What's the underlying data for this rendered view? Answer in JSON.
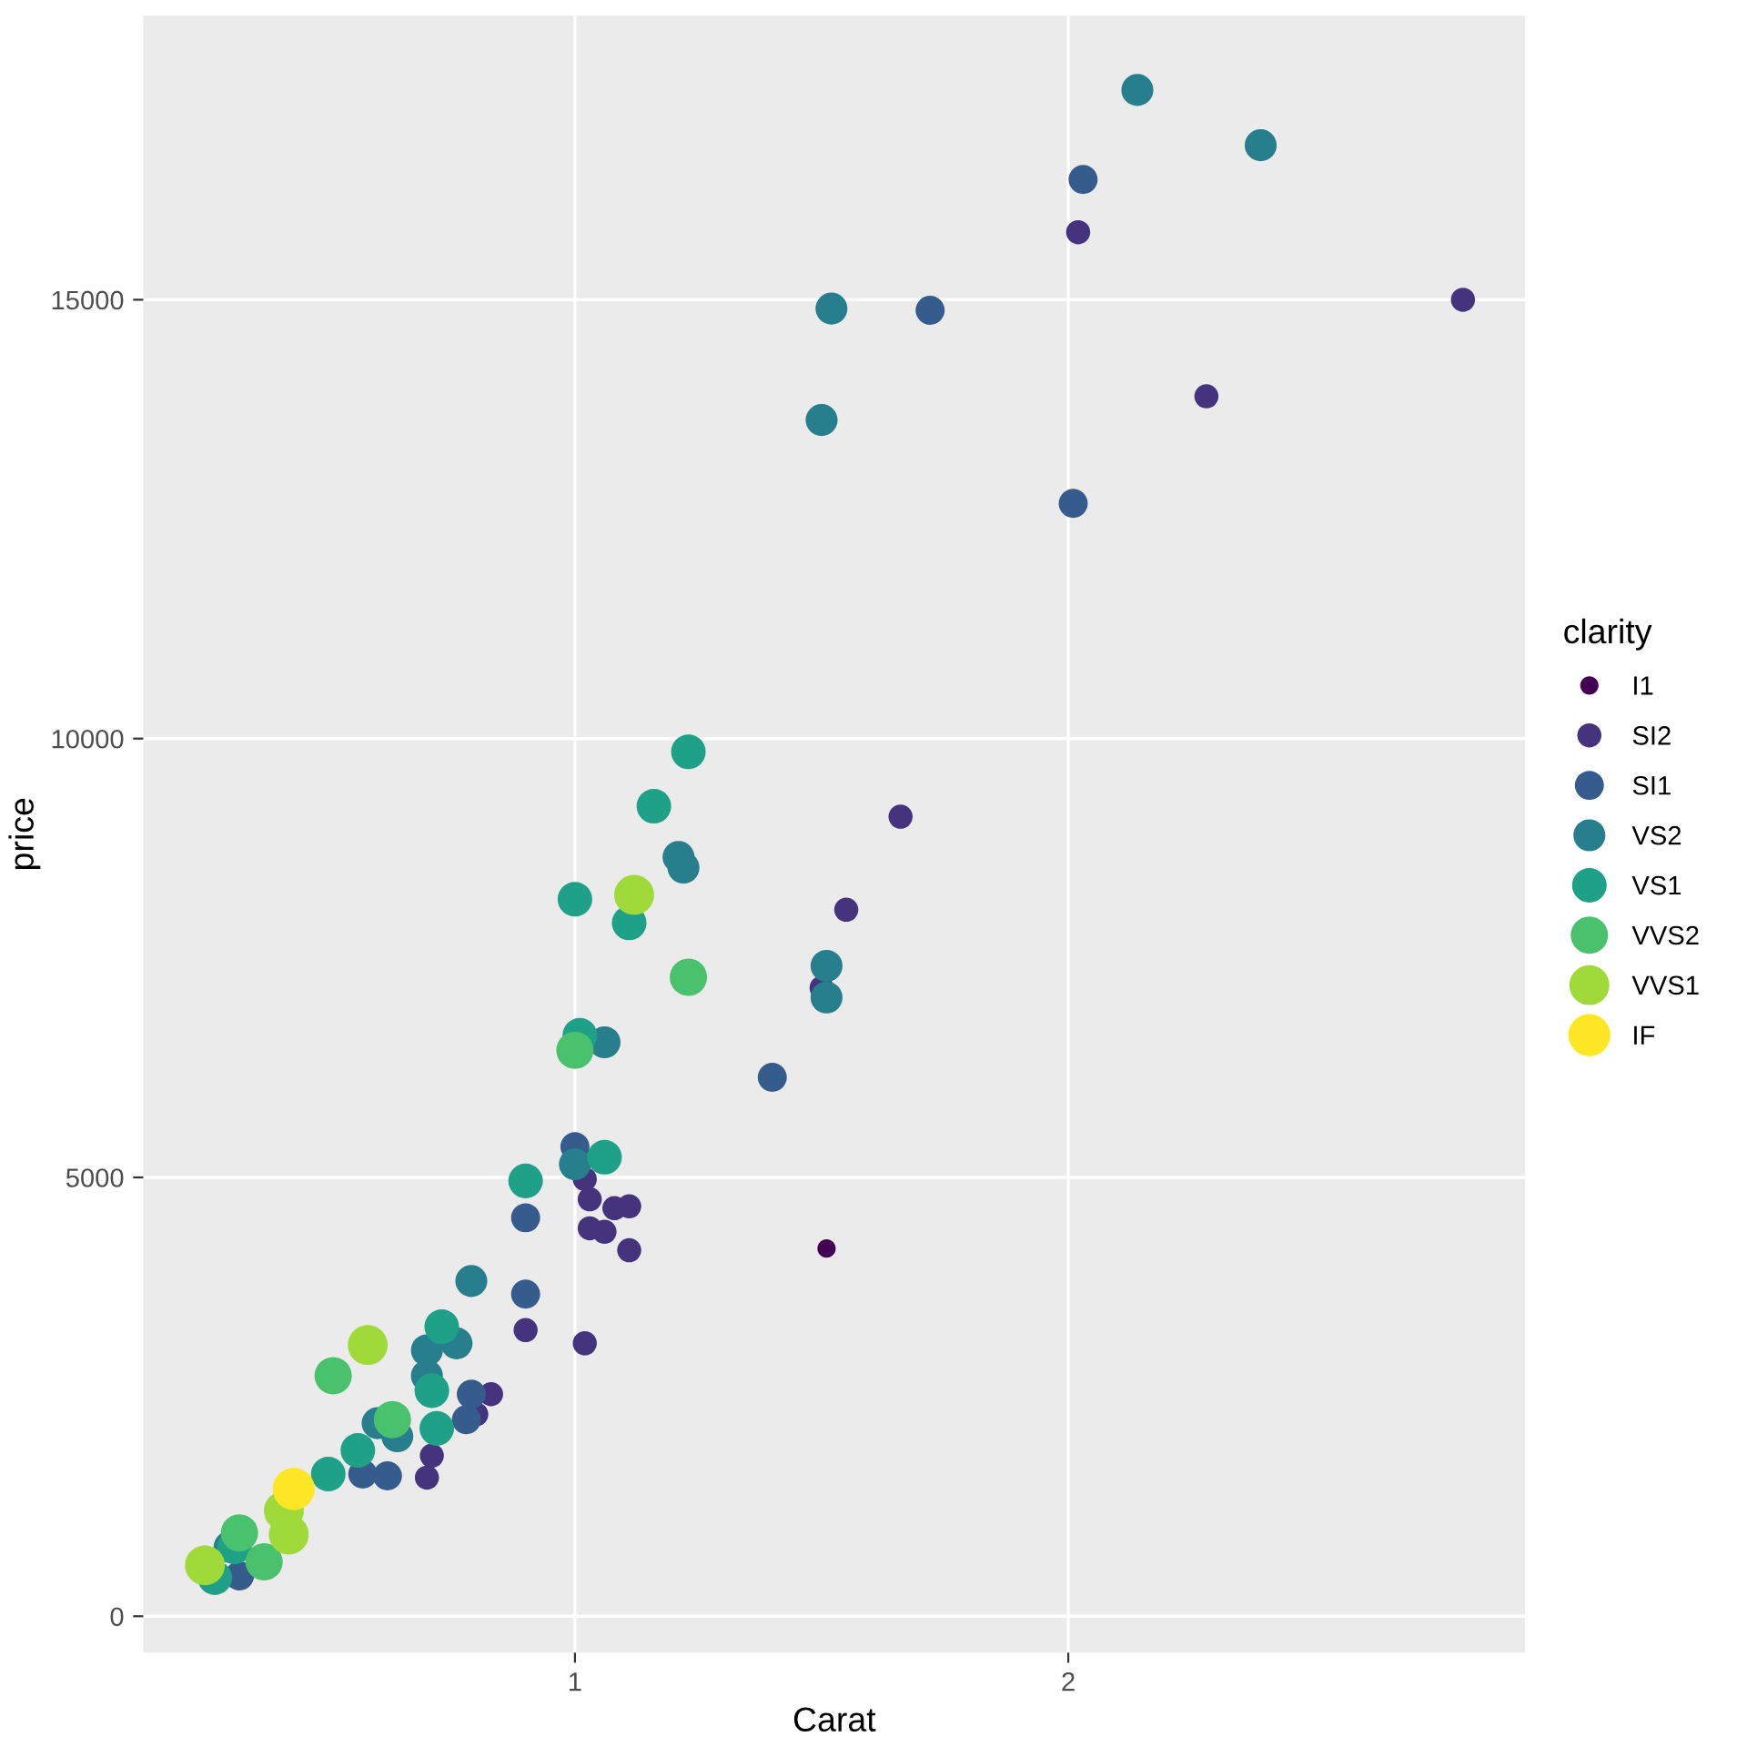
{
  "chart_data": {
    "type": "bubble",
    "xlabel": "Carat",
    "ylabel": "price",
    "legend_title": "clarity",
    "legend": "right",
    "grid": true,
    "marker": "circle",
    "xlim": [
      0.125,
      2.926
    ],
    "ylim": [
      -415,
      18236
    ],
    "xticks": [
      1,
      2
    ],
    "yticks": [
      0,
      5000,
      10000,
      15000
    ],
    "series": [
      {
        "name": "I1",
        "color": "#440154",
        "x": [
          1.51
        ],
        "values": [
          4190
        ],
        "sizes": [
          0.19
        ]
      },
      {
        "name": "SI2",
        "color": "#46337e",
        "x": [
          2.02,
          2.8,
          2.28,
          1.66,
          1.55,
          1.5,
          1.02,
          1.03,
          1.08,
          1.11,
          1.03,
          1.06,
          1.11,
          0.9,
          1.02,
          0.83,
          0.8,
          0.71,
          0.7
        ],
        "values": [
          15770,
          15000,
          13900,
          9110,
          8050,
          7160,
          4980,
          4750,
          4650,
          4670,
          4420,
          4380,
          4170,
          3260,
          3110,
          2530,
          2300,
          1830,
          1580
        ],
        "sizes": [
          0.33,
          0.33,
          0.33,
          0.33,
          0.33,
          0.33,
          0.33,
          0.33,
          0.33,
          0.33,
          0.33,
          0.33,
          0.33,
          0.33,
          0.33,
          0.33,
          0.33,
          0.33,
          0.33
        ]
      },
      {
        "name": "SI1",
        "color": "#365c8d",
        "x": [
          2.03,
          1.72,
          2.01,
          1.4,
          1.0,
          0.9,
          0.9,
          0.79,
          0.78,
          0.62,
          0.57,
          0.32
        ],
        "values": [
          16370,
          14880,
          12680,
          6140,
          5350,
          4540,
          3670,
          2530,
          2240,
          1600,
          1620,
          460
        ],
        "sizes": [
          0.48,
          0.48,
          0.48,
          0.48,
          0.48,
          0.48,
          0.48,
          0.48,
          0.48,
          0.48,
          0.48,
          0.48
        ]
      },
      {
        "name": "VS2",
        "color": "#277f8e",
        "x": [
          2.14,
          2.39,
          1.52,
          1.5,
          1.21,
          1.22,
          1.51,
          1.51,
          1.06,
          1.0,
          0.79,
          0.7,
          0.76,
          0.7,
          0.64,
          0.6,
          0.3
        ],
        "values": [
          17390,
          16760,
          14900,
          13630,
          8650,
          8530,
          7410,
          7050,
          6540,
          5150,
          3820,
          3030,
          3110,
          2740,
          2050,
          2200,
          790
        ],
        "sizes": [
          0.58,
          0.58,
          0.58,
          0.58,
          0.58,
          0.58,
          0.58,
          0.58,
          0.58,
          0.58,
          0.58,
          0.58,
          0.58,
          0.58,
          0.58,
          0.58,
          0.58
        ]
      },
      {
        "name": "VS1",
        "color": "#1fa187",
        "x": [
          1.23,
          1.16,
          1.0,
          1.11,
          1.01,
          1.06,
          0.9,
          0.73,
          0.71,
          0.72,
          0.5,
          0.56,
          0.27,
          0.31
        ],
        "values": [
          9850,
          9230,
          8170,
          7900,
          6620,
          5230,
          4960,
          3300,
          2570,
          2140,
          1620,
          1890,
          440,
          790
        ],
        "sizes": [
          0.68,
          0.68,
          0.68,
          0.68,
          0.68,
          0.68,
          0.68,
          0.68,
          0.68,
          0.68,
          0.68,
          0.68,
          0.68,
          0.68
        ]
      },
      {
        "name": "VVS2",
        "color": "#4ac16d",
        "x": [
          1.23,
          1.0,
          0.51,
          0.63,
          0.32,
          0.37
        ],
        "values": [
          7280,
          6450,
          2740,
          2240,
          950,
          620
        ],
        "sizes": [
          0.79,
          0.79,
          0.79,
          0.79,
          0.79,
          0.79
        ]
      },
      {
        "name": "VVS1",
        "color": "#9fda3a",
        "x": [
          1.12,
          0.58,
          0.25,
          0.42,
          0.41
        ],
        "values": [
          8220,
          3090,
          580,
          930,
          1200
        ],
        "sizes": [
          0.9,
          0.9,
          0.9,
          0.9,
          0.9
        ]
      },
      {
        "name": "IF",
        "color": "#fde725",
        "x": [
          0.43
        ],
        "values": [
          1450
        ],
        "sizes": [
          1
        ]
      }
    ]
  }
}
